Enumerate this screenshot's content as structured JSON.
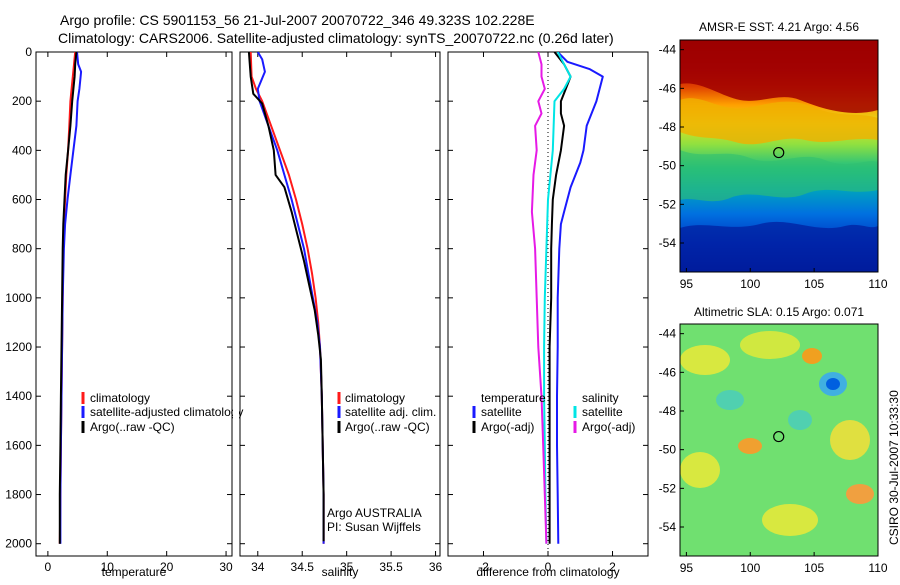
{
  "figure": {
    "title_line1": "Argo profile: CS 5901153_56 21-Jul-2007 20070722_346 49.323S 102.228E",
    "title_line2": "Climatology: CARS2006. Satellite-adjusted climatology: synTS_20070722.nc (0.26d later)",
    "footer_credit": "CSIRO 30-Jul-2007 10:33:30"
  },
  "colors": {
    "climatology": "#ff1a1a",
    "satellite": "#1a1aff",
    "argo": "#000000",
    "temp_satellite": "#00e5e5",
    "salinity_argo": "#e61ae6"
  },
  "chart_data": [
    {
      "type": "line",
      "panel": "temperature",
      "xlabel": "temperature",
      "ylabel": "",
      "xlim": [
        -2,
        31
      ],
      "ylim": [
        2050,
        0
      ],
      "xticks": [
        0,
        10,
        20,
        30
      ],
      "yticks": [
        0,
        200,
        400,
        600,
        800,
        1000,
        1200,
        1400,
        1600,
        1800,
        2000
      ],
      "legend_location": "lower-right",
      "series": [
        {
          "name": "climatology",
          "color": "#ff1a1a",
          "points": [
            [
              4.6,
              0
            ],
            [
              4.4,
              50
            ],
            [
              4.2,
              100
            ],
            [
              4.0,
              150
            ],
            [
              3.8,
              200
            ],
            [
              3.6,
              300
            ],
            [
              3.4,
              400
            ],
            [
              3.1,
              500
            ],
            [
              2.9,
              600
            ],
            [
              2.7,
              700
            ],
            [
              2.6,
              800
            ],
            [
              2.5,
              1000
            ],
            [
              2.4,
              1200
            ],
            [
              2.3,
              1400
            ],
            [
              2.2,
              1600
            ],
            [
              2.1,
              1800
            ],
            [
              2.0,
              2000
            ]
          ]
        },
        {
          "name": "satellite-adjusted climatology",
          "color": "#1a1aff",
          "points": [
            [
              4.9,
              0
            ],
            [
              5.1,
              50
            ],
            [
              5.6,
              80
            ],
            [
              5.3,
              150
            ],
            [
              5.0,
              200
            ],
            [
              4.8,
              300
            ],
            [
              4.3,
              400
            ],
            [
              3.8,
              500
            ],
            [
              3.3,
              600
            ],
            [
              2.9,
              700
            ],
            [
              2.7,
              800
            ],
            [
              2.5,
              1000
            ],
            [
              2.4,
              1200
            ],
            [
              2.3,
              1400
            ],
            [
              2.2,
              1600
            ],
            [
              2.1,
              1800
            ],
            [
              2.1,
              2000
            ]
          ]
        },
        {
          "name": "Argo(..raw -QC)",
          "color": "#000000",
          "points": [
            [
              4.8,
              0
            ],
            [
              4.6,
              50
            ],
            [
              4.5,
              100
            ],
            [
              4.3,
              150
            ],
            [
              4.1,
              200
            ],
            [
              3.8,
              300
            ],
            [
              3.4,
              400
            ],
            [
              3.0,
              500
            ],
            [
              2.8,
              600
            ],
            [
              2.6,
              700
            ],
            [
              2.5,
              800
            ],
            [
              2.4,
              1000
            ],
            [
              2.3,
              1200
            ],
            [
              2.2,
              1400
            ],
            [
              2.1,
              1600
            ],
            [
              2.0,
              1800
            ],
            [
              2.0,
              2000
            ]
          ]
        }
      ],
      "legend": [
        "climatology",
        "satellite-adjusted climatology",
        "Argo(..raw -QC)"
      ],
      "annotations": []
    },
    {
      "type": "line",
      "panel": "salinity",
      "xlabel": "salinity",
      "ylabel": "",
      "xlim": [
        33.8,
        36.05
      ],
      "ylim": [
        2050,
        0
      ],
      "xticks": [
        34,
        34.5,
        35,
        35.5,
        36
      ],
      "yticks": [
        0,
        200,
        400,
        600,
        800,
        1000,
        1200,
        1400,
        1600,
        1800,
        2000
      ],
      "legend_location": "lower-right",
      "series": [
        {
          "name": "climatology",
          "color": "#ff1a1a",
          "points": [
            [
              33.92,
              0
            ],
            [
              33.93,
              100
            ],
            [
              33.98,
              150
            ],
            [
              34.05,
              200
            ],
            [
              34.15,
              300
            ],
            [
              34.25,
              400
            ],
            [
              34.35,
              500
            ],
            [
              34.43,
              600
            ],
            [
              34.5,
              700
            ],
            [
              34.56,
              800
            ],
            [
              34.61,
              900
            ],
            [
              34.65,
              1000
            ],
            [
              34.68,
              1100
            ],
            [
              34.7,
              1200
            ],
            [
              34.72,
              1400
            ],
            [
              34.73,
              1600
            ],
            [
              34.74,
              1800
            ],
            [
              34.74,
              2000
            ]
          ]
        },
        {
          "name": "satellite adj. clim.",
          "color": "#1a1aff",
          "points": [
            [
              34.0,
              0
            ],
            [
              34.05,
              30
            ],
            [
              34.08,
              80
            ],
            [
              34.0,
              150
            ],
            [
              34.02,
              200
            ],
            [
              34.12,
              300
            ],
            [
              34.22,
              400
            ],
            [
              34.3,
              500
            ],
            [
              34.38,
              600
            ],
            [
              34.45,
              700
            ],
            [
              34.52,
              800
            ],
            [
              34.57,
              900
            ],
            [
              34.62,
              1000
            ],
            [
              34.67,
              1100
            ],
            [
              34.7,
              1200
            ],
            [
              34.72,
              1400
            ],
            [
              34.73,
              1600
            ],
            [
              34.74,
              1800
            ],
            [
              34.74,
              2000
            ]
          ]
        },
        {
          "name": "Argo(..raw -QC)",
          "color": "#000000",
          "points": [
            [
              33.9,
              0
            ],
            [
              33.92,
              100
            ],
            [
              33.95,
              170
            ],
            [
              34.05,
              210
            ],
            [
              34.12,
              300
            ],
            [
              34.18,
              400
            ],
            [
              34.2,
              500
            ],
            [
              34.3,
              550
            ],
            [
              34.38,
              650
            ],
            [
              34.45,
              750
            ],
            [
              34.52,
              850
            ],
            [
              34.58,
              950
            ],
            [
              34.64,
              1050
            ],
            [
              34.68,
              1150
            ],
            [
              34.71,
              1250
            ],
            [
              34.72,
              1400
            ],
            [
              34.73,
              1600
            ],
            [
              34.74,
              1800
            ],
            [
              34.74,
              1990
            ]
          ]
        }
      ],
      "legend": [
        "climatology",
        "satellite adj. clim.",
        "Argo(..raw -QC)"
      ],
      "annotations": [
        "Argo AUSTRALIA",
        "PI: Susan Wijffels"
      ]
    },
    {
      "type": "line",
      "panel": "difference from climatology",
      "xlabel": "difference from climatology",
      "ylabel": "",
      "xlim": [
        -3.1,
        3.1
      ],
      "ylim": [
        2050,
        0
      ],
      "xticks": [
        -2,
        0,
        2
      ],
      "yticks": [
        0,
        200,
        400,
        600,
        800,
        1000,
        1200,
        1400,
        1600,
        1800,
        2000
      ],
      "legend_location": "lower-right",
      "series": [
        {
          "name": "temperature satellite",
          "color": "#1a1aff",
          "points": [
            [
              0.3,
              0
            ],
            [
              0.6,
              40
            ],
            [
              1.3,
              70
            ],
            [
              1.7,
              100
            ],
            [
              1.5,
              200
            ],
            [
              1.2,
              300
            ],
            [
              1.1,
              400
            ],
            [
              1.0,
              450
            ],
            [
              0.7,
              550
            ],
            [
              0.5,
              650
            ],
            [
              0.4,
              700
            ],
            [
              0.35,
              800
            ],
            [
              0.3,
              1000
            ],
            [
              0.3,
              1200
            ],
            [
              0.28,
              1400
            ],
            [
              0.28,
              1600
            ],
            [
              0.3,
              1800
            ],
            [
              0.32,
              2000
            ]
          ]
        },
        {
          "name": "temperature Argo(-adj)",
          "color": "#000000",
          "points": [
            [
              0.2,
              0
            ],
            [
              0.5,
              50
            ],
            [
              0.7,
              100
            ],
            [
              0.4,
              200
            ],
            [
              0.4,
              250
            ],
            [
              0.5,
              300
            ],
            [
              0.4,
              400
            ],
            [
              0.25,
              500
            ],
            [
              0.15,
              600
            ],
            [
              0.12,
              700
            ],
            [
              0.1,
              800
            ],
            [
              0.1,
              1000
            ],
            [
              0.05,
              1200
            ],
            [
              0.05,
              1400
            ],
            [
              0.05,
              1600
            ],
            [
              0.05,
              1800
            ],
            [
              0.05,
              2000
            ]
          ]
        },
        {
          "name": "salinity satellite",
          "color": "#00e5e5",
          "points": [
            [
              0.3,
              0
            ],
            [
              0.5,
              50
            ],
            [
              0.7,
              100
            ],
            [
              0.5,
              150
            ],
            [
              0.2,
              200
            ],
            [
              0.15,
              400
            ],
            [
              0.0,
              600
            ],
            [
              -0.05,
              800
            ],
            [
              -0.1,
              1000
            ],
            [
              -0.12,
              1200
            ],
            [
              -0.12,
              1400
            ],
            [
              -0.1,
              1600
            ],
            [
              -0.08,
              1800
            ],
            [
              -0.05,
              2000
            ]
          ]
        },
        {
          "name": "salinity Argo(-adj)",
          "color": "#e61ae6",
          "points": [
            [
              -0.3,
              0
            ],
            [
              -0.2,
              50
            ],
            [
              -0.2,
              100
            ],
            [
              -0.1,
              150
            ],
            [
              -0.3,
              200
            ],
            [
              -0.2,
              250
            ],
            [
              -0.4,
              300
            ],
            [
              -0.35,
              400
            ],
            [
              -0.45,
              500
            ],
            [
              -0.5,
              650
            ],
            [
              -0.4,
              800
            ],
            [
              -0.35,
              1000
            ],
            [
              -0.3,
              1200
            ],
            [
              -0.2,
              1400
            ],
            [
              -0.15,
              1600
            ],
            [
              -0.1,
              1800
            ],
            [
              -0.05,
              2000
            ]
          ]
        }
      ],
      "legend_headers": [
        "temperature",
        "salinity"
      ],
      "legend": [
        "satellite",
        "Argo(-adj)",
        "satellite",
        "Argo(-adj)"
      ],
      "annotations": []
    },
    {
      "type": "heatmap",
      "panel": "AMSR-E SST",
      "title": "AMSR-E SST: 4.21 Argo: 4.56",
      "xlim": [
        94.5,
        110
      ],
      "ylim": [
        -55.5,
        -43.5
      ],
      "xticks": [
        95,
        100,
        105,
        110
      ],
      "yticks": [
        -44,
        -46,
        -48,
        -50,
        -52,
        -54
      ],
      "marker": {
        "lon": 102.228,
        "lat": -49.323
      }
    },
    {
      "type": "heatmap",
      "panel": "Altimetric SLA",
      "title": "Altimetric SLA: 0.15 Argo: 0.071",
      "xlim": [
        94.5,
        110
      ],
      "ylim": [
        -55.5,
        -43.5
      ],
      "xticks": [
        95,
        100,
        105,
        110
      ],
      "yticks": [
        -44,
        -46,
        -48,
        -50,
        -52,
        -54
      ],
      "marker": {
        "lon": 102.228,
        "lat": -49.323
      }
    }
  ]
}
